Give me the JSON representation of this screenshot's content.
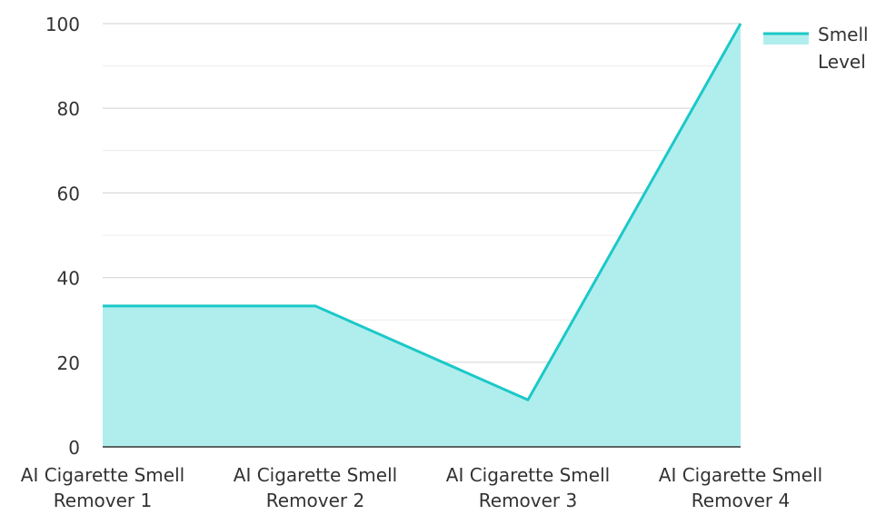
{
  "chart_data": {
    "type": "area",
    "categories": [
      "AI Cigarette Smell Remover 1",
      "AI Cigarette Smell Remover 2",
      "AI Cigarette Smell Remover 3",
      "AI Cigarette Smell Remover 4"
    ],
    "category_lines": [
      [
        "AI Cigarette Smell",
        "Remover 1"
      ],
      [
        "AI Cigarette Smell",
        "Remover 2"
      ],
      [
        "AI Cigarette Smell",
        "Remover 3"
      ],
      [
        "AI Cigarette Smell",
        "Remover 4"
      ]
    ],
    "series": [
      {
        "name": "Smell Level",
        "values": [
          33.3,
          33.3,
          11.1,
          100
        ]
      }
    ],
    "legend_lines": [
      "Smell",
      "Level"
    ],
    "ylim": [
      0,
      100
    ],
    "yticks": [
      0,
      20,
      40,
      60,
      80,
      100
    ],
    "grid": true,
    "legend_position": "top-right",
    "colors": {
      "line": "#1cc8c8",
      "fill": "#b0eeee",
      "grid": "#d9d9d9",
      "axis": "#333333"
    }
  }
}
